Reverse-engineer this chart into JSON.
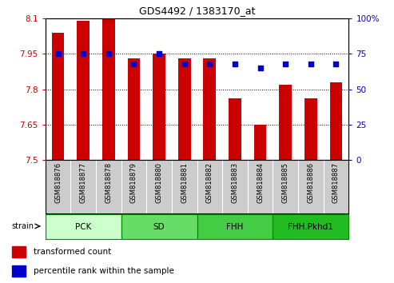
{
  "title": "GDS4492 / 1383170_at",
  "samples": [
    "GSM818876",
    "GSM818877",
    "GSM818878",
    "GSM818879",
    "GSM818880",
    "GSM818881",
    "GSM818882",
    "GSM818883",
    "GSM818884",
    "GSM818885",
    "GSM818886",
    "GSM818887"
  ],
  "transformed_count": [
    8.04,
    8.09,
    8.1,
    7.93,
    7.95,
    7.93,
    7.93,
    7.76,
    7.65,
    7.82,
    7.76,
    7.83
  ],
  "percentile_rank": [
    75,
    75,
    75,
    68,
    75,
    68,
    68,
    68,
    65,
    68,
    68,
    68
  ],
  "bar_color": "#cc0000",
  "dot_color": "#0000cc",
  "ylim_left": [
    7.5,
    8.1
  ],
  "ylim_right": [
    0,
    100
  ],
  "yticks_left": [
    7.5,
    7.65,
    7.8,
    7.95,
    8.1
  ],
  "yticks_right": [
    0,
    25,
    50,
    75,
    100
  ],
  "ytick_labels_left": [
    "7.5",
    "7.65",
    "7.8",
    "7.95",
    "8.1"
  ],
  "ytick_labels_right": [
    "0",
    "25",
    "50",
    "75",
    "100%"
  ],
  "hline_values": [
    7.65,
    7.8,
    7.95
  ],
  "groups": [
    {
      "label": "PCK",
      "start": 0,
      "end": 3,
      "color": "#ccffcc"
    },
    {
      "label": "SD",
      "start": 3,
      "end": 6,
      "color": "#66dd66"
    },
    {
      "label": "FHH",
      "start": 6,
      "end": 9,
      "color": "#44cc44"
    },
    {
      "label": "FHH.Pkhd1",
      "start": 9,
      "end": 12,
      "color": "#22bb22"
    }
  ],
  "strain_label": "strain",
  "legend_items": [
    {
      "color": "#cc0000",
      "label": "transformed count"
    },
    {
      "color": "#0000cc",
      "label": "percentile rank within the sample"
    }
  ],
  "bar_width": 0.5,
  "xtick_bg": "#cccccc",
  "group_border_color": "#008800"
}
